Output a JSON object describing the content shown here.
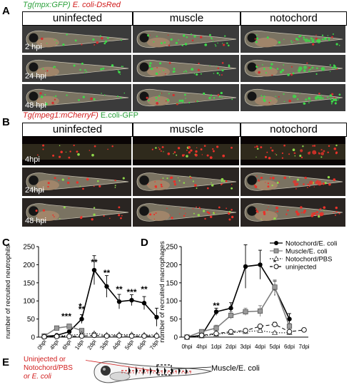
{
  "panelA": {
    "label": "A",
    "legend_green": "Tg(mpx:GFP)",
    "legend_red": "E. coli-DsRed",
    "columns": [
      "uninfected",
      "muscle",
      "notochord"
    ],
    "timepoints": [
      "2 hpi",
      "24 hpi",
      "48 hpi"
    ]
  },
  "panelB": {
    "label": "B",
    "legend_red": "Tg(mpeg1:mCherryF)",
    "legend_green": "E.coli-GFP",
    "columns": [
      "uninfected",
      "muscle",
      "notochord"
    ],
    "timepoints": [
      "4hpi",
      "24hpi",
      "48 hpi"
    ]
  },
  "panelC": {
    "label": "C"
  },
  "panelD": {
    "label": "D"
  },
  "panelE": {
    "label": "E",
    "left_label_lines": [
      "Uninjected or",
      "Notochord/PBS",
      "or E. coli"
    ],
    "right_label": "Muscle/E. coli"
  },
  "chart_data": [
    {
      "type": "line",
      "panel": "C",
      "title": "",
      "xlabel": "",
      "ylabel": "number of recruited neutrophils",
      "x": [
        "0hpi",
        "4hpi",
        "6hpi",
        "1dpi",
        "2dpi",
        "3dpi",
        "4dpi",
        "5dpi",
        "6dpi",
        "7dpi"
      ],
      "ylim": [
        0,
        250
      ],
      "yticks": [
        0,
        50,
        100,
        150,
        200,
        250
      ],
      "series": [
        {
          "name": "Notochord/E. coli",
          "marker": "filled-circle",
          "values": [
            2,
            5,
            15,
            50,
            185,
            140,
            98,
            102,
            94,
            55
          ],
          "err": [
            1,
            3,
            5,
            12,
            40,
            30,
            20,
            15,
            18,
            25
          ]
        },
        {
          "name": "Muscle/E. coli",
          "marker": "gray-square",
          "values": [
            3,
            25,
            30,
            18,
            null,
            null,
            null,
            null,
            null,
            null
          ],
          "err": [
            1,
            4,
            5,
            4,
            null,
            null,
            null,
            null,
            null,
            null
          ]
        },
        {
          "name": "Notochord/PBS",
          "marker": "triangle",
          "values": [
            2,
            3,
            5,
            8,
            10,
            6,
            7,
            7,
            6,
            6
          ],
          "err": [
            1,
            1,
            2,
            2,
            3,
            2,
            2,
            2,
            2,
            2
          ]
        },
        {
          "name": "uninjected",
          "marker": "open-circle",
          "values": [
            1,
            2,
            2,
            3,
            5,
            3,
            4,
            3,
            3,
            3
          ],
          "err": [
            1,
            1,
            1,
            1,
            2,
            1,
            1,
            1,
            1,
            1
          ]
        }
      ],
      "annotations": [
        {
          "x": "6hpi",
          "text": "***"
        },
        {
          "x": "1dpi",
          "text": "**"
        },
        {
          "x": "1dpi",
          "text": "*"
        },
        {
          "x": "2dpi",
          "text": "**"
        },
        {
          "x": "3dpi",
          "text": "**"
        },
        {
          "x": "4dpi",
          "text": "**"
        },
        {
          "x": "5dpi",
          "text": "***"
        },
        {
          "x": "6dpi",
          "text": "**"
        }
      ]
    },
    {
      "type": "line",
      "panel": "D",
      "title": "",
      "xlabel": "",
      "ylabel": "number of recruited macrophages",
      "x": [
        "0hpi",
        "4hpi",
        "1dpi",
        "2dpi",
        "3dpi",
        "4dpi",
        "5dpi",
        "6dpi",
        "7dpi"
      ],
      "ylim": [
        0,
        250
      ],
      "yticks": [
        0,
        50,
        100,
        150,
        200,
        250
      ],
      "series": [
        {
          "name": "Notochord/E. coli",
          "marker": "filled-circle",
          "values": [
            0,
            5,
            70,
            80,
            195,
            200,
            135,
            50,
            null
          ],
          "err": [
            1,
            3,
            10,
            15,
            60,
            40,
            20,
            15,
            null
          ]
        },
        {
          "name": "Muscle/E. coli",
          "marker": "gray-square",
          "values": [
            0,
            15,
            25,
            60,
            70,
            72,
            138,
            30,
            null
          ],
          "err": [
            1,
            5,
            8,
            10,
            10,
            15,
            20,
            8,
            null
          ]
        },
        {
          "name": "Notochord/PBS",
          "marker": "triangle",
          "values": [
            0,
            3,
            8,
            12,
            15,
            18,
            12,
            12,
            null
          ],
          "err": [
            1,
            1,
            2,
            3,
            3,
            4,
            3,
            3,
            null
          ]
        },
        {
          "name": "uninjected",
          "marker": "open-circle",
          "values": [
            0,
            5,
            10,
            15,
            18,
            30,
            35,
            15,
            20
          ],
          "err": [
            1,
            2,
            3,
            3,
            4,
            5,
            6,
            4,
            5
          ]
        }
      ],
      "legend_position": "top-right",
      "annotations": [
        {
          "x": "1dpi",
          "text": "**"
        },
        {
          "x": "5dpi",
          "text": "*"
        }
      ]
    }
  ]
}
